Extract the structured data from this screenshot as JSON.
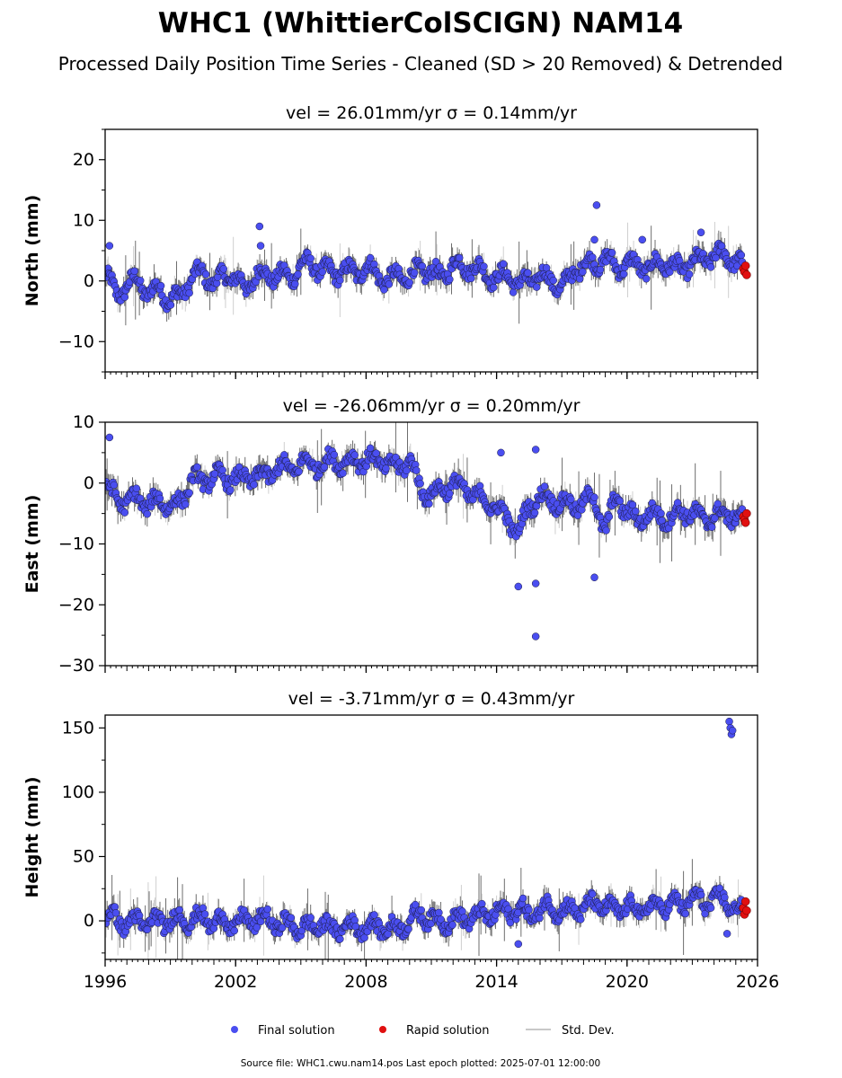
{
  "title": "WHC1 (WhittierColSCIGN) NAM14",
  "subtitle": "Processed Daily Position Time Series - Cleaned (SD > 20 Removed) & Detrended",
  "footer": "Source file: WHC1.cwu.nam14.pos  Last epoch plotted: 2025-07-01 12:00:00",
  "legend": {
    "items": [
      {
        "label": "Final solution",
        "color": "#4a4ef0"
      },
      {
        "label": "Rapid solution",
        "color": "#e01010"
      },
      {
        "label": "Std. Dev.",
        "color": "#c8c8c8"
      }
    ]
  },
  "colors": {
    "final": "#4a4ef0",
    "rapid": "#e01010",
    "stddev": "#9a9a9a"
  },
  "chart_data": [
    {
      "type": "scatter",
      "panel": "north",
      "title": "vel = 26.01mm/yr   σ = 0.14mm/yr",
      "ylabel": "North (mm)",
      "xlabel": "",
      "xlim": [
        1996,
        2026
      ],
      "ylim": [
        -15,
        25
      ],
      "yticks": [
        -10,
        0,
        10,
        20
      ],
      "ytick_labels": [
        "−10",
        "0",
        "10",
        "20"
      ],
      "xtick_labels": [],
      "series": [
        {
          "name": "Final solution",
          "x": [
            1996.0,
            1996.5,
            1997.0,
            1997.5,
            1998.0,
            1998.5,
            1999.0,
            1999.5,
            2000.0,
            2000.5,
            2001.0,
            2001.5,
            2002.0,
            2002.5,
            2003.0,
            2003.5,
            2004.0,
            2004.5,
            2005.0,
            2005.5,
            2006.0,
            2006.5,
            2007.0,
            2007.5,
            2008.0,
            2008.5,
            2009.0,
            2009.5,
            2010.0,
            2010.5,
            2011.0,
            2011.5,
            2012.0,
            2012.5,
            2013.0,
            2013.5,
            2014.0,
            2014.5,
            2015.0,
            2015.5,
            2016.0,
            2016.5,
            2017.0,
            2017.5,
            2018.0,
            2018.5,
            2019.0,
            2019.5,
            2020.0,
            2020.5,
            2021.0,
            2021.5,
            2022.0,
            2022.5,
            2023.0,
            2023.5,
            2024.0,
            2024.5,
            2025.0,
            2025.3
          ],
          "y": [
            1.0,
            -2.0,
            -1.0,
            0.5,
            -2.5,
            -1.0,
            -3.5,
            -2.0,
            0.5,
            1.5,
            -0.5,
            1.0,
            0.5,
            -1.5,
            1.5,
            0.5,
            1.5,
            0.0,
            3.0,
            2.5,
            2.0,
            1.0,
            2.0,
            1.0,
            2.5,
            1.0,
            0.0,
            1.0,
            0.5,
            2.0,
            1.5,
            0.5,
            3.0,
            2.0,
            2.5,
            1.0,
            0.5,
            1.0,
            -0.5,
            0.0,
            1.0,
            0.0,
            -1.0,
            1.0,
            3.0,
            2.5,
            4.0,
            2.0,
            3.0,
            2.5,
            2.0,
            3.0,
            2.5,
            2.0,
            3.0,
            3.5,
            4.0,
            4.5,
            3.0,
            2.5
          ]
        },
        {
          "name": "Rapid solution",
          "x": [
            2025.35,
            2025.4,
            2025.45,
            2025.5
          ],
          "y": [
            2.0,
            1.5,
            2.5,
            1.0
          ]
        }
      ],
      "outliers": {
        "x": [
          1996.2,
          2003.1,
          2003.15,
          2018.6,
          2018.5,
          2020.7,
          2023.4
        ],
        "y": [
          5.8,
          9.0,
          5.8,
          12.5,
          6.8,
          6.8,
          8.0
        ]
      }
    },
    {
      "type": "scatter",
      "panel": "east",
      "title": "vel = -26.06mm/yr   σ = 0.20mm/yr",
      "ylabel": "East (mm)",
      "xlabel": "",
      "xlim": [
        1996,
        2026
      ],
      "ylim": [
        -30,
        10
      ],
      "yticks": [
        -30,
        -20,
        -10,
        0,
        10
      ],
      "ytick_labels": [
        "−30",
        "−20",
        "−10",
        "0",
        "10"
      ],
      "xtick_labels": [],
      "series": [
        {
          "name": "Final solution",
          "x": [
            1996.0,
            1996.5,
            1997.0,
            1997.5,
            1998.0,
            1998.5,
            1999.0,
            1999.5,
            2000.0,
            2000.5,
            2001.0,
            2001.5,
            2002.0,
            2002.5,
            2003.0,
            2003.5,
            2004.0,
            2004.5,
            2005.0,
            2005.5,
            2006.0,
            2006.5,
            2007.0,
            2007.5,
            2008.0,
            2008.5,
            2009.0,
            2009.5,
            2010.0,
            2010.5,
            2011.0,
            2011.5,
            2012.0,
            2012.5,
            2013.0,
            2013.5,
            2014.0,
            2014.5,
            2015.0,
            2015.5,
            2016.0,
            2016.5,
            2017.0,
            2017.5,
            2018.0,
            2018.5,
            2019.0,
            2019.5,
            2020.0,
            2020.5,
            2021.0,
            2021.5,
            2022.0,
            2022.5,
            2023.0,
            2023.5,
            2024.0,
            2024.5,
            2025.0,
            2025.3
          ],
          "y": [
            -1.0,
            -2.0,
            -3.5,
            -2.0,
            -4.0,
            -2.5,
            -4.0,
            -3.0,
            1.0,
            0.0,
            1.5,
            0.5,
            1.0,
            0.5,
            1.5,
            1.0,
            3.0,
            2.0,
            3.5,
            3.0,
            3.0,
            4.0,
            3.0,
            4.0,
            3.5,
            4.0,
            3.0,
            2.5,
            4.0,
            -1.0,
            -2.0,
            -1.0,
            0.0,
            -1.0,
            -2.0,
            -3.0,
            -4.0,
            -6.0,
            -8.0,
            -4.0,
            -2.0,
            -3.0,
            -3.0,
            -4.0,
            -3.0,
            -2.5,
            -8.0,
            -2.0,
            -5.0,
            -6.0,
            -5.0,
            -5.5,
            -6.0,
            -4.5,
            -5.0,
            -6.0,
            -5.5,
            -5.0,
            -5.5,
            -6.0
          ]
        },
        {
          "name": "Rapid solution",
          "x": [
            2025.35,
            2025.4,
            2025.45,
            2025.5
          ],
          "y": [
            -5.5,
            -6.0,
            -6.5,
            -5.0
          ]
        }
      ],
      "outliers": {
        "x": [
          1996.2,
          2015.8,
          2015.8,
          2015.8,
          2014.2,
          2015.0,
          2018.5
        ],
        "y": [
          7.5,
          5.5,
          -16.5,
          -25.2,
          5.0,
          -17.0,
          -15.5
        ]
      }
    },
    {
      "type": "scatter",
      "panel": "height",
      "title": "vel = -3.71mm/yr   σ = 0.43mm/yr",
      "ylabel": "Height (mm)",
      "xlabel": "",
      "xlim": [
        1996,
        2026
      ],
      "ylim": [
        -30,
        160
      ],
      "yticks": [
        0,
        50,
        100,
        150
      ],
      "ytick_labels": [
        "0",
        "50",
        "100",
        "150"
      ],
      "xtick_labels": [
        "1996",
        "2002",
        "2008",
        "2014",
        "2020",
        "2026"
      ],
      "xticks": [
        1996,
        2002,
        2008,
        2014,
        2020,
        2026
      ],
      "series": [
        {
          "name": "Final solution",
          "x": [
            1996.0,
            1996.5,
            1997.0,
            1997.5,
            1998.0,
            1998.5,
            1999.0,
            1999.5,
            2000.0,
            2000.5,
            2001.0,
            2001.5,
            2002.0,
            2002.5,
            2003.0,
            2003.5,
            2004.0,
            2004.5,
            2005.0,
            2005.5,
            2006.0,
            2006.5,
            2007.0,
            2007.5,
            2008.0,
            2008.5,
            2009.0,
            2009.5,
            2010.0,
            2010.5,
            2011.0,
            2011.5,
            2012.0,
            2012.5,
            2013.0,
            2013.5,
            2014.0,
            2014.5,
            2015.0,
            2015.5,
            2016.0,
            2016.5,
            2017.0,
            2017.5,
            2018.0,
            2018.5,
            2019.0,
            2019.5,
            2020.0,
            2020.5,
            2021.0,
            2021.5,
            2022.0,
            2022.5,
            2023.0,
            2023.5,
            2024.0,
            2024.5,
            2025.0,
            2025.3
          ],
          "y": [
            0,
            5,
            -5,
            3,
            -4,
            2,
            -3,
            4,
            -2,
            5,
            -4,
            2,
            -5,
            3,
            -2,
            4,
            -6,
            0,
            -8,
            -3,
            -4,
            -6,
            -5,
            -4,
            -6,
            -3,
            -7,
            -5,
            0,
            5,
            2,
            -2,
            2,
            0,
            5,
            3,
            8,
            6,
            10,
            4,
            8,
            12,
            6,
            10,
            8,
            15,
            10,
            8,
            12,
            7,
            12,
            10,
            15,
            10,
            20,
            12,
            18,
            15,
            10,
            8
          ]
        },
        {
          "name": "Rapid solution",
          "x": [
            2025.35,
            2025.4,
            2025.45,
            2025.5
          ],
          "y": [
            10,
            5,
            15,
            8
          ]
        }
      ],
      "outliers": {
        "x": [
          2024.7,
          2024.75,
          2024.8,
          2024.85,
          2024.6,
          2015.0
        ],
        "y": [
          155,
          150,
          145,
          148,
          -10,
          -18
        ]
      }
    }
  ]
}
